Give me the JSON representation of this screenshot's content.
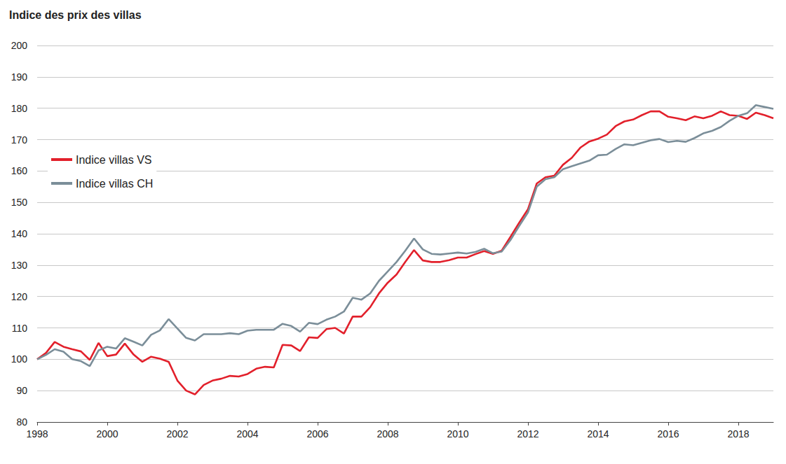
{
  "chart_data": {
    "type": "line",
    "title": "Indice des prix des villas",
    "x": [
      1998,
      1998.25,
      1998.5,
      1998.75,
      1999,
      1999.25,
      1999.5,
      1999.75,
      2000,
      2000.25,
      2000.5,
      2000.75,
      2001,
      2001.25,
      2001.5,
      2001.75,
      2002,
      2002.25,
      2002.5,
      2002.75,
      2003,
      2003.25,
      2003.5,
      2003.75,
      2004,
      2004.25,
      2004.5,
      2004.75,
      2005,
      2005.25,
      2005.5,
      2005.75,
      2006,
      2006.25,
      2006.5,
      2006.75,
      2007,
      2007.25,
      2007.5,
      2007.75,
      2008,
      2008.25,
      2008.5,
      2008.75,
      2009,
      2009.25,
      2009.5,
      2009.75,
      2010,
      2010.25,
      2010.5,
      2010.75,
      2011,
      2011.25,
      2011.5,
      2011.75,
      2012,
      2012.25,
      2012.5,
      2012.75,
      2013,
      2013.25,
      2013.5,
      2013.75,
      2014,
      2014.25,
      2014.5,
      2014.75,
      2015,
      2015.25,
      2015.5,
      2015.75,
      2016,
      2016.25,
      2016.5,
      2016.75,
      2017,
      2017.25,
      2017.5,
      2017.75,
      2018,
      2018.25,
      2018.5,
      2018.75,
      2019
    ],
    "series": [
      {
        "name": "Indice villas VS",
        "color": "#e2202b",
        "values": [
          100,
          102,
          105.5,
          104,
          103.2,
          102.5,
          99.8,
          105.2,
          101,
          101.5,
          105,
          101.5,
          99.2,
          100.8,
          100.2,
          99.2,
          93.2,
          90,
          88.8,
          91.8,
          93.2,
          93.8,
          94.7,
          94.5,
          95.3,
          97,
          97.6,
          97.4,
          104.6,
          104.4,
          102.6,
          107,
          106.8,
          109.6,
          110,
          108.2,
          113.6,
          113.6,
          116.6,
          121,
          124.4,
          127,
          131,
          134.8,
          131.5,
          131,
          131,
          131.6,
          132.4,
          132.4,
          133.5,
          134.5,
          133.6,
          134.6,
          139,
          143.5,
          147.8,
          156,
          158,
          158.5,
          162,
          164.2,
          167.5,
          169.4,
          170.3,
          171.6,
          174.3,
          175.8,
          176.4,
          177.8,
          179,
          179,
          177.3,
          176.8,
          176.2,
          177.4,
          176.8,
          177.6,
          179,
          177.8,
          177.6,
          176.6,
          178.6,
          177.8,
          176.8
        ]
      },
      {
        "name": "Indice villas CH",
        "color": "#7b8e99",
        "values": [
          100,
          101.4,
          103.2,
          102.4,
          100,
          99.4,
          97.8,
          102.8,
          104,
          103.4,
          106.7,
          105.6,
          104.4,
          107.8,
          109.2,
          112.8,
          109.8,
          106.8,
          106,
          108,
          108,
          108,
          108.3,
          108,
          109.1,
          109.4,
          109.4,
          109.4,
          111.3,
          110.6,
          108.8,
          111.6,
          111.2,
          112.6,
          113.6,
          115.2,
          119.6,
          119,
          121,
          125,
          128,
          131,
          134.6,
          138.5,
          135,
          133.6,
          133.4,
          133.7,
          134,
          133.7,
          134.2,
          135.2,
          133.8,
          134.3,
          138,
          142.5,
          146.8,
          155,
          157.4,
          158,
          160.6,
          161.5,
          162.4,
          163.3,
          165,
          165.2,
          167,
          168.5,
          168.2,
          169,
          169.8,
          170.2,
          169.2,
          169.6,
          169.3,
          170.5,
          172,
          172.8,
          174,
          176,
          177.6,
          178.4,
          181,
          180.4,
          179.8
        ]
      }
    ],
    "xlim": [
      1998,
      2019
    ],
    "xticks": [
      1998,
      2000,
      2002,
      2004,
      2006,
      2008,
      2010,
      2012,
      2014,
      2016,
      2018
    ],
    "ylim": [
      80,
      200
    ],
    "yticks": [
      80,
      90,
      100,
      110,
      120,
      130,
      140,
      150,
      160,
      170,
      180,
      190,
      200
    ],
    "grid": true,
    "legend": "upper left"
  }
}
